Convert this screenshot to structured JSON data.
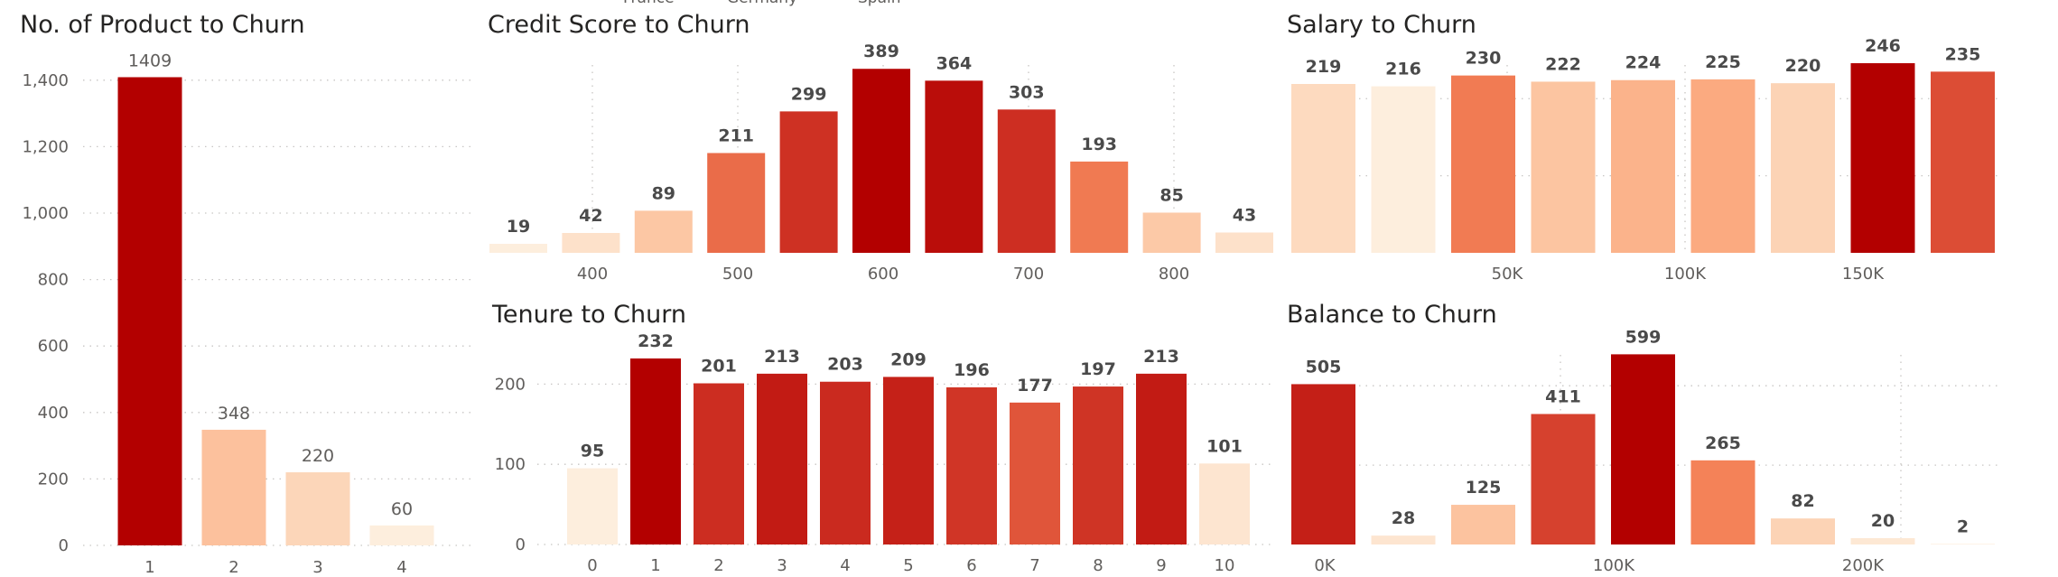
{
  "legend_fragments": [
    "France",
    "Germany",
    "Spain"
  ],
  "colors": {
    "title": "#252423",
    "axis_text": "#605e5c",
    "data_label_bold": "#4a4a4a",
    "gridline": "#c8c6c4",
    "scale_low": "#fdeedd",
    "scale_high": "#b30000"
  },
  "chart_data": [
    {
      "type": "bar",
      "title": "No. of Product to Churn",
      "categories": [
        "1",
        "2",
        "3",
        "4"
      ],
      "values": [
        1409,
        348,
        220,
        60
      ],
      "ylim": [
        0,
        1500
      ],
      "y_ticks": [
        "0",
        "200",
        "400",
        "600",
        "800",
        "1,000",
        "1,200",
        "1,400"
      ],
      "grid": true,
      "color_scale": "sequential white-to-dark-red"
    },
    {
      "type": "bar",
      "title": "Credit Score to Churn",
      "values": [
        19,
        42,
        89,
        211,
        299,
        389,
        364,
        303,
        193,
        85,
        43
      ],
      "bin_width": 50,
      "x_ticks": [
        "400",
        "500",
        "600",
        "700",
        "800"
      ],
      "x_tick_values": [
        400,
        500,
        600,
        700,
        800
      ],
      "ylim": [
        0,
        420
      ],
      "grid": true
    },
    {
      "type": "bar",
      "title": "Salary to Churn",
      "values": [
        219,
        216,
        230,
        222,
        224,
        225,
        220,
        246,
        235
      ],
      "x_ticks": [
        "50K",
        "100K",
        "150K"
      ],
      "x_tick_values": [
        50000,
        100000,
        150000
      ],
      "ylim": [
        0,
        260
      ],
      "grid": true
    },
    {
      "type": "bar",
      "title": "Tenure to Churn",
      "categories": [
        "0",
        "1",
        "2",
        "3",
        "4",
        "5",
        "6",
        "7",
        "8",
        "9",
        "10"
      ],
      "values": [
        95,
        232,
        201,
        213,
        203,
        209,
        196,
        177,
        197,
        213,
        101
      ],
      "y_ticks": [
        "0",
        "100",
        "200"
      ],
      "ylim": [
        0,
        250
      ],
      "grid": true
    },
    {
      "type": "bar",
      "title": "Balance to Churn",
      "values": [
        505,
        28,
        125,
        411,
        599,
        265,
        82,
        20,
        2
      ],
      "x_ticks": [
        "0K",
        "100K",
        "200K"
      ],
      "x_tick_values": [
        0,
        100000,
        200000
      ],
      "ylim": [
        0,
        620
      ],
      "grid": true
    }
  ]
}
